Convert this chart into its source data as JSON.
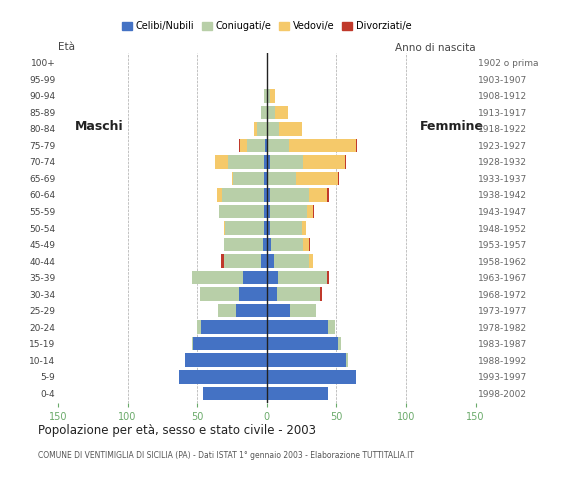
{
  "age_groups": [
    "0-4",
    "5-9",
    "10-14",
    "15-19",
    "20-24",
    "25-29",
    "30-34",
    "35-39",
    "40-44",
    "45-49",
    "50-54",
    "55-59",
    "60-64",
    "65-69",
    "70-74",
    "75-79",
    "80-84",
    "85-89",
    "90-94",
    "95-99",
    "100+"
  ],
  "birth_years": [
    "1998-2002",
    "1993-1997",
    "1988-1992",
    "1983-1987",
    "1978-1982",
    "1973-1977",
    "1968-1972",
    "1963-1967",
    "1958-1962",
    "1953-1957",
    "1948-1952",
    "1943-1947",
    "1938-1942",
    "1933-1937",
    "1928-1932",
    "1923-1927",
    "1918-1922",
    "1913-1917",
    "1908-1912",
    "1903-1907",
    "1902 o prima"
  ],
  "males": {
    "celibi": [
      46,
      63,
      59,
      53,
      47,
      22,
      20,
      17,
      4,
      3,
      2,
      2,
      2,
      2,
      2,
      1,
      0,
      0,
      0,
      0,
      0
    ],
    "coniugati": [
      0,
      0,
      0,
      1,
      3,
      13,
      28,
      37,
      27,
      28,
      28,
      32,
      30,
      22,
      26,
      13,
      7,
      4,
      2,
      0,
      0
    ],
    "vedovi": [
      0,
      0,
      0,
      0,
      0,
      0,
      0,
      0,
      0,
      0,
      1,
      0,
      4,
      1,
      9,
      5,
      2,
      0,
      0,
      0,
      0
    ],
    "divorziati": [
      0,
      0,
      0,
      0,
      0,
      0,
      0,
      0,
      2,
      0,
      0,
      0,
      0,
      0,
      0,
      1,
      0,
      0,
      0,
      0,
      0
    ]
  },
  "females": {
    "nubili": [
      44,
      64,
      57,
      51,
      44,
      17,
      7,
      8,
      5,
      3,
      2,
      2,
      2,
      1,
      2,
      1,
      0,
      0,
      0,
      0,
      0
    ],
    "coniugate": [
      0,
      0,
      1,
      2,
      5,
      18,
      31,
      35,
      25,
      23,
      23,
      27,
      28,
      20,
      24,
      15,
      9,
      6,
      2,
      0,
      0
    ],
    "vedove": [
      0,
      0,
      0,
      0,
      0,
      0,
      0,
      0,
      3,
      4,
      3,
      4,
      13,
      30,
      30,
      48,
      16,
      9,
      4,
      0,
      0
    ],
    "divorziate": [
      0,
      0,
      0,
      0,
      0,
      0,
      2,
      2,
      0,
      1,
      0,
      1,
      2,
      1,
      1,
      1,
      0,
      0,
      0,
      0,
      0
    ]
  },
  "color_celibi": "#4472c4",
  "color_coniugati": "#b8cfa8",
  "color_vedovi": "#f5c96a",
  "color_divorziati": "#c0392b",
  "xlim": 150,
  "title": "Popolazione per età, sesso e stato civile - 2003",
  "subtitle": "COMUNE DI VENTIMIGLIA DI SICILIA (PA) - Dati ISTAT 1° gennaio 2003 - Elaborazione TUTTITALIA.IT",
  "label_maschi": "Maschi",
  "label_femmine": "Femmine",
  "legend_labels": [
    "Celibi/Nubili",
    "Coniugati/e",
    "Vedovi/e",
    "Divorziati/e"
  ],
  "bg_color": "#ffffff",
  "axis_color": "#6aaa6a"
}
